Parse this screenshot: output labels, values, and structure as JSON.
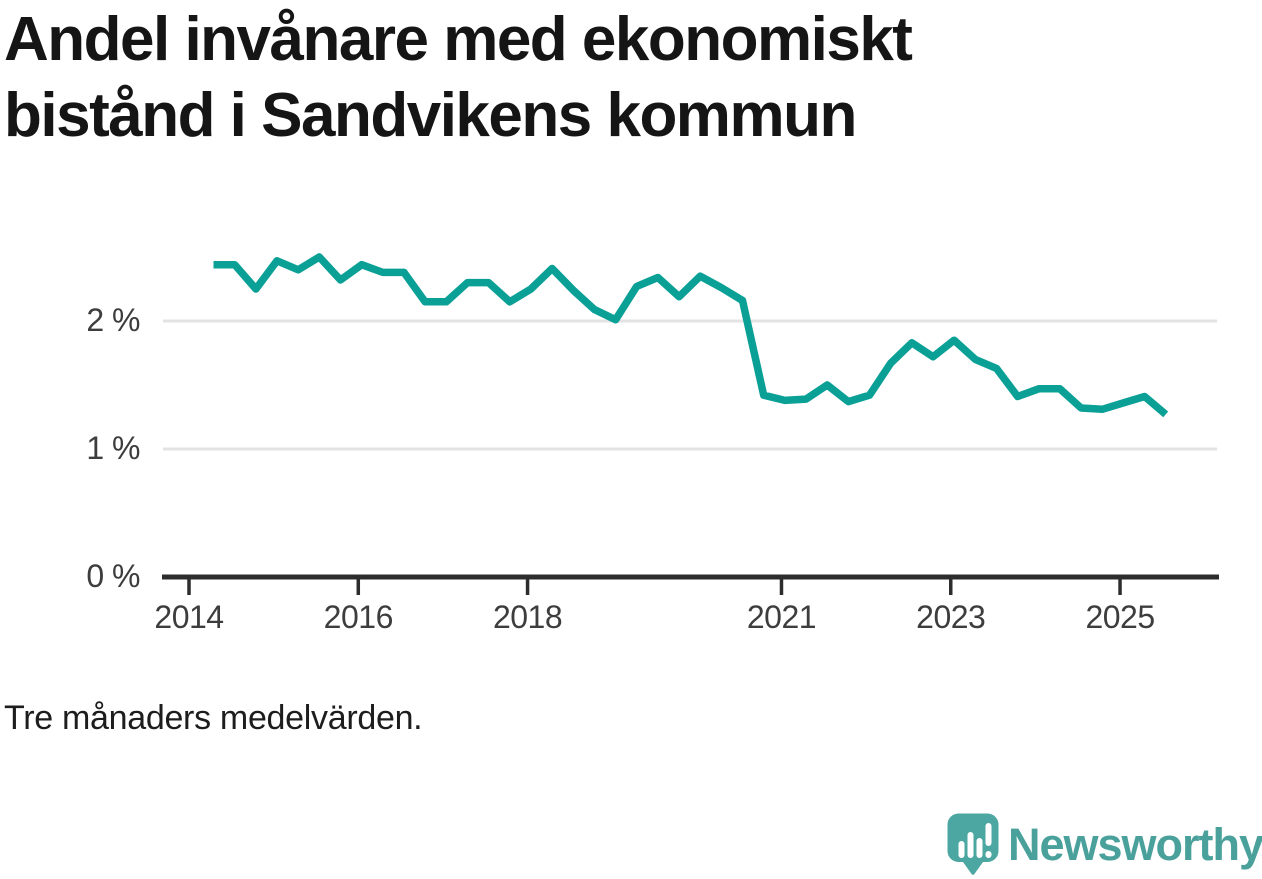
{
  "title": "Andel invånare med ekonomiskt bistånd i Sandvikens kommun",
  "title_lines": [
    "Andel invånare med ekonomiskt",
    "bistånd i Sandvikens kommun"
  ],
  "footnote": "Tre månaders medelvärden.",
  "logo": {
    "brand": "Newsworthy"
  },
  "colors": {
    "line": "#0aa096",
    "grid": "#e3e3e3",
    "axis": "#2d2d2d",
    "tick_text": "#3d3d3d",
    "title_text": "#151515",
    "logo_teal": "#4ca7a2"
  },
  "chart_data": {
    "type": "line",
    "title": "Andel invånare med ekonomiskt bistånd i Sandvikens kommun",
    "note": "Tre månaders medelvärden.",
    "unit": "%",
    "xlabel": "",
    "ylabel": "",
    "xlim": [
      2013.7,
      2025.95
    ],
    "ylim": [
      0,
      2.75
    ],
    "grid": "horizontal",
    "legend": "none",
    "series_name": "Andel invånare med ekonomiskt bistånd, Sandvikens kommun",
    "x": [
      2014.29,
      2014.54,
      2014.79,
      2015.04,
      2015.29,
      2015.54,
      2015.79,
      2016.04,
      2016.29,
      2016.54,
      2016.79,
      2017.04,
      2017.29,
      2017.54,
      2017.79,
      2018.04,
      2018.29,
      2018.54,
      2018.79,
      2019.04,
      2019.29,
      2019.54,
      2019.79,
      2020.04,
      2020.29,
      2020.54,
      2020.79,
      2021.04,
      2021.29,
      2021.54,
      2021.79,
      2022.04,
      2022.29,
      2022.54,
      2022.79,
      2023.04,
      2023.29,
      2023.54,
      2023.79,
      2024.04,
      2024.29,
      2024.54,
      2024.79,
      2025.04,
      2025.29,
      2025.54
    ],
    "y": [
      2.44,
      2.44,
      2.25,
      2.47,
      2.4,
      2.5,
      2.32,
      2.44,
      2.38,
      2.38,
      2.15,
      2.15,
      2.3,
      2.3,
      2.15,
      2.25,
      2.41,
      2.24,
      2.09,
      2.01,
      2.27,
      2.34,
      2.19,
      2.35,
      2.26,
      2.16,
      1.42,
      1.38,
      1.39,
      1.5,
      1.37,
      1.42,
      1.67,
      1.83,
      1.72,
      1.85,
      1.7,
      1.63,
      1.41,
      1.47,
      1.47,
      1.32,
      1.31,
      1.36,
      1.41,
      1.27
    ],
    "x_ticks": [
      {
        "t": 2014,
        "label": "2014"
      },
      {
        "t": 2016,
        "label": "2016"
      },
      {
        "t": 2018,
        "label": "2018"
      },
      {
        "t": 2021,
        "label": "2021"
      },
      {
        "t": 2023,
        "label": "2023"
      },
      {
        "t": 2025,
        "label": "2025"
      }
    ],
    "y_ticks": [
      {
        "v": 0,
        "label": "0 %"
      },
      {
        "v": 1,
        "label": "1 %"
      },
      {
        "v": 2,
        "label": "2 %"
      }
    ]
  }
}
